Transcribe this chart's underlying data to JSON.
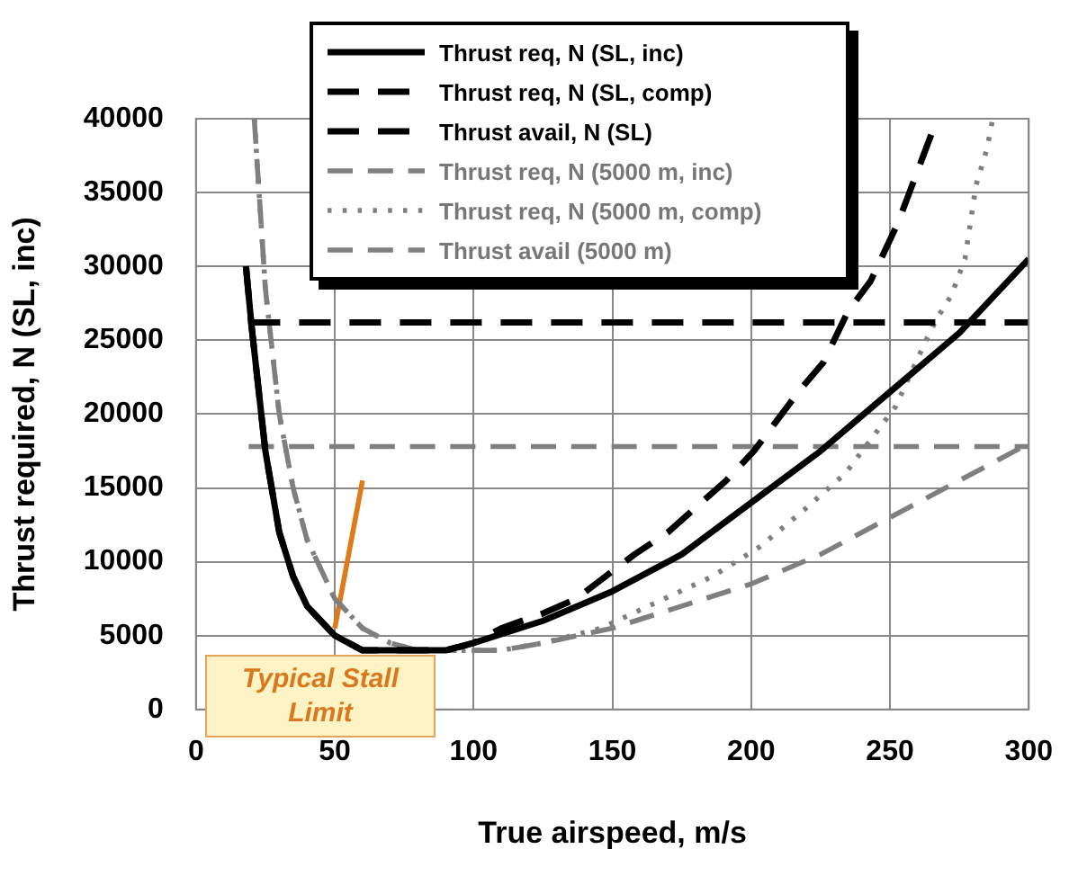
{
  "chart_data": {
    "type": "line",
    "xlabel": "True airspeed, m/s",
    "ylabel": "Thrust required, N (SL, inc)",
    "xlim": [
      0,
      300
    ],
    "xticks": [
      0,
      50,
      100,
      150,
      200,
      250,
      300
    ],
    "ylim": [
      0,
      40000
    ],
    "yticks": [
      0,
      5000,
      10000,
      15000,
      20000,
      25000,
      30000,
      35000,
      40000
    ],
    "grid": true,
    "legend": "top",
    "marker": "none",
    "series": [
      {
        "name": "Thrust req, N (SL, inc)",
        "color": "#000000",
        "line_style": "solid",
        "x": [
          18,
          20,
          25,
          30,
          35,
          40,
          50,
          60,
          70,
          80,
          90,
          100,
          125,
          150,
          175,
          200,
          225,
          250,
          275,
          300
        ],
        "values": [
          30000,
          26000,
          17500,
          12000,
          9000,
          7000,
          5000,
          4000,
          4000,
          4000,
          4000,
          4500,
          6000,
          8000,
          10500,
          14000,
          17500,
          21500,
          25500,
          30500
        ]
      },
      {
        "name": "Thrust req, N (SL, comp)",
        "color": "#000000",
        "line_style": "dashed",
        "x": [
          18,
          20,
          25,
          30,
          35,
          40,
          50,
          60,
          70,
          80,
          90,
          100,
          110,
          125,
          137,
          158,
          170,
          191,
          201,
          217,
          226,
          235,
          243,
          253,
          258,
          265
        ],
        "values": [
          30000,
          26000,
          17500,
          12000,
          9000,
          7000,
          5000,
          4000,
          4000,
          4000,
          4000,
          4500,
          5500,
          6500,
          7500,
          10500,
          12000,
          15500,
          17500,
          21500,
          23500,
          27000,
          29000,
          33000,
          35500,
          39000
        ]
      },
      {
        "name": "Thrust avail, N (SL)",
        "color": "#000000",
        "line_style": "dashed",
        "x": [
          19,
          300
        ],
        "values": [
          26200,
          26200
        ]
      },
      {
        "name": "Thrust req, N (5000 m, inc)",
        "color": "#7f7f7f",
        "line_style": "dashed",
        "x": [
          21,
          25,
          30,
          35,
          40,
          50,
          60,
          70,
          80,
          90,
          100,
          110,
          125,
          150,
          175,
          200,
          225,
          250,
          275,
          300
        ],
        "values": [
          40000,
          28500,
          20000,
          15000,
          11500,
          7500,
          5500,
          4500,
          4000,
          4000,
          4000,
          4000,
          4500,
          5500,
          7000,
          8500,
          10500,
          13000,
          15500,
          18000
        ]
      },
      {
        "name": "Thrust req, N (5000 m, comp)",
        "color": "#7f7f7f",
        "line_style": "dotted",
        "x": [
          21,
          25,
          30,
          35,
          40,
          50,
          60,
          70,
          80,
          90,
          100,
          110,
          125,
          146,
          163,
          186,
          203,
          219,
          234,
          240,
          252,
          263,
          267,
          272,
          277,
          281,
          285,
          287
        ],
        "values": [
          40000,
          28500,
          20000,
          15000,
          11500,
          7500,
          5500,
          4500,
          4000,
          4000,
          4000,
          4000,
          4500,
          5500,
          7000,
          9000,
          11000,
          13500,
          16000,
          17500,
          20500,
          25000,
          26500,
          28000,
          30500,
          35500,
          38000,
          40000
        ]
      },
      {
        "name": "Thrust avail (5000 m)",
        "color": "#7f7f7f",
        "line_style": "dashed",
        "x": [
          19,
          300
        ],
        "values": [
          17800,
          17800
        ]
      },
      {
        "color": "#e07b1a",
        "line_style": "solid",
        "x": [
          50,
          60
        ],
        "values": [
          5500,
          15500
        ]
      }
    ],
    "annotations": [
      {
        "text": "Typical Stall Limit",
        "x": 50,
        "y": 5500
      }
    ]
  }
}
